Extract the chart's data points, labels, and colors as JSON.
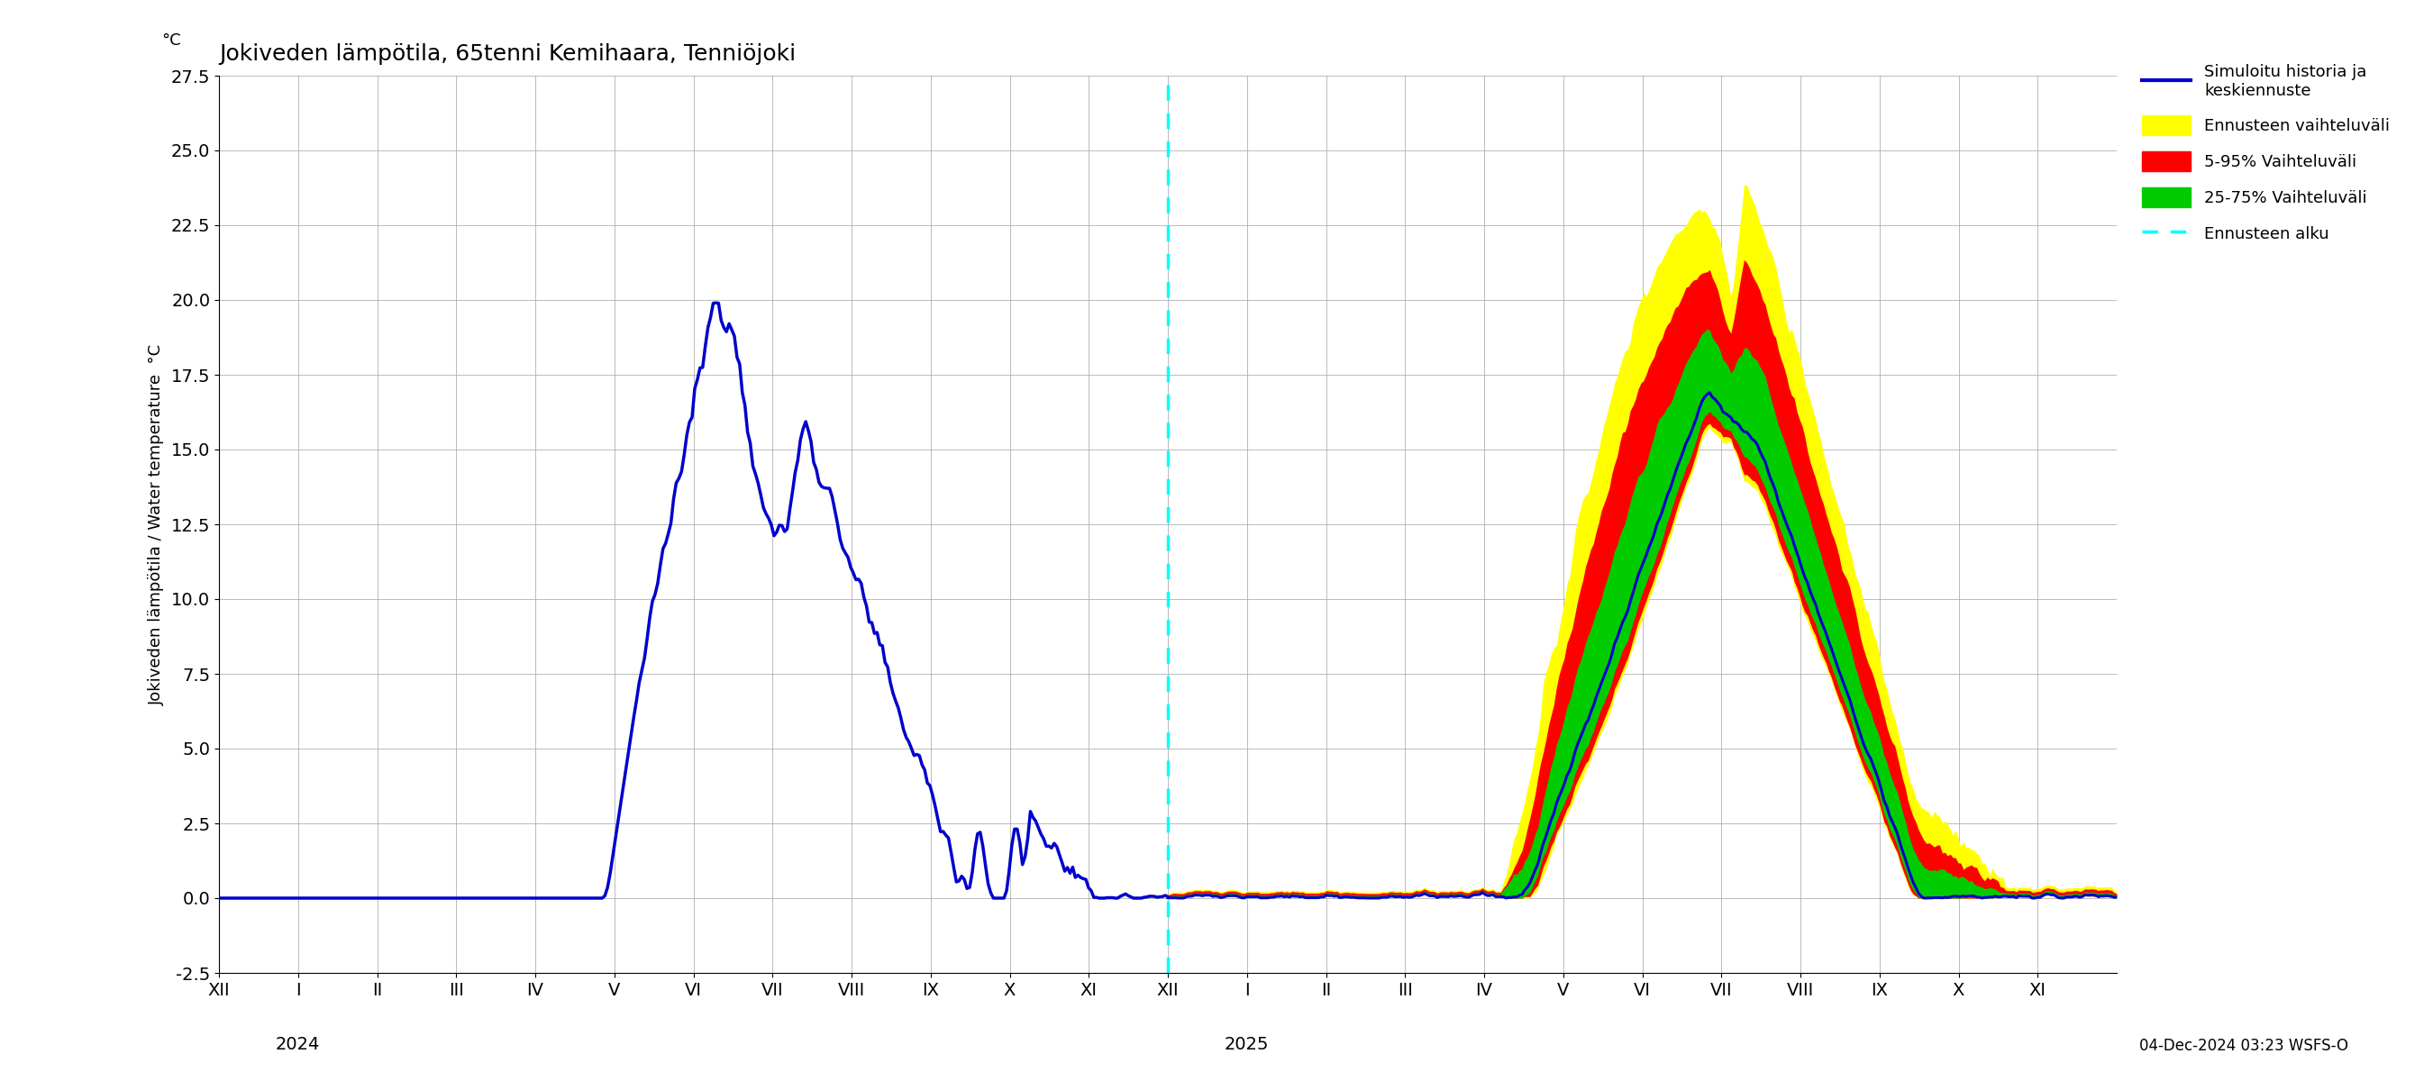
{
  "title": "Jokiveden lämpötila, 65tenni Kemihaara, Tenniöjoki",
  "ylabel_main": "Jokiveden lämpötila / Water temperature",
  "ylabel_unit": "°C",
  "yticks": [
    -2.5,
    0.0,
    2.5,
    5.0,
    7.5,
    10.0,
    12.5,
    15.0,
    17.5,
    20.0,
    22.5,
    25.0,
    27.5
  ],
  "ylim": [
    -2.5,
    27.5
  ],
  "xlim": [
    0,
    24
  ],
  "background_color": "#ffffff",
  "grid_color": "#aaaaaa",
  "history_line_color": "#0000cc",
  "forecast_band_yellow": "#ffff00",
  "forecast_band_red": "#ff0000",
  "forecast_band_green": "#00cc00",
  "forecast_center_color": "#0000cc",
  "forecast_start_color": "#00ffff",
  "forecast_start_x": 12,
  "timestamp": "04-Dec-2024 03:23 WSFS-O",
  "month_ticks": [
    0,
    1,
    2,
    3,
    4,
    5,
    6,
    7,
    8,
    9,
    10,
    11,
    12,
    13,
    14,
    15,
    16,
    17,
    18,
    19,
    20,
    21,
    22,
    23
  ],
  "month_labels": [
    "XII",
    "I",
    "II",
    "III",
    "IV",
    "V",
    "VI",
    "VII",
    "VIII",
    "IX",
    "X",
    "XI",
    "XII",
    "I",
    "II",
    "III",
    "IV",
    "V",
    "VI",
    "VII",
    "VIII",
    "IX",
    "X",
    "XI"
  ],
  "year_2024_x": 1,
  "year_2025_x": 13,
  "legend_blue_label": "Simuloitu historia ja\nkeskiennuste",
  "legend_yellow_label": "Ennusteen vaihteluväli",
  "legend_red_label": "5-95% Vaihteluväli",
  "legend_green_label": "25-75% Vaihteluväli",
  "legend_cyan_label": "Ennusteen alku"
}
